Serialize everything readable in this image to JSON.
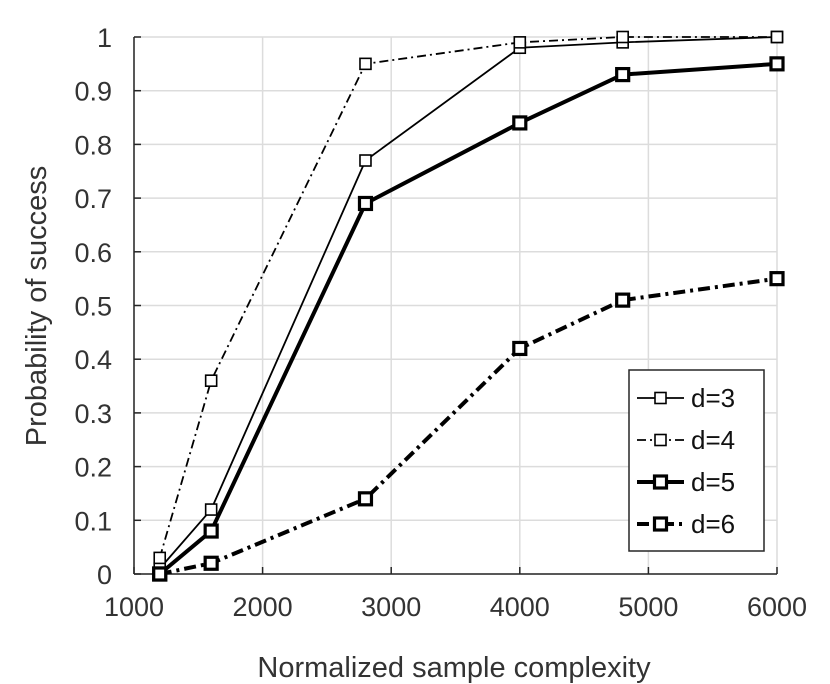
{
  "chart_data": {
    "type": "line",
    "title": "",
    "xlabel": "Normalized sample complexity",
    "ylabel": "Probability of success",
    "xlim": [
      1000,
      6000
    ],
    "ylim": [
      0,
      1
    ],
    "xticks": [
      "1000",
      "2000",
      "3000",
      "4000",
      "5000",
      "6000"
    ],
    "yticks": [
      "0",
      "0.1",
      "0.2",
      "0.3",
      "0.4",
      "0.5",
      "0.6",
      "0.7",
      "0.8",
      "0.9",
      "1"
    ],
    "grid": true,
    "legend_position": "bottom-right",
    "x": [
      1200,
      1600,
      2800,
      4000,
      4800,
      6000
    ],
    "series": [
      {
        "name": "d=3",
        "values": [
          0.01,
          0.12,
          0.77,
          0.98,
          0.99,
          1.0
        ],
        "color": "#000000",
        "style": "solid",
        "weight": "thin",
        "marker": "square"
      },
      {
        "name": "d=4",
        "values": [
          0.03,
          0.36,
          0.95,
          0.99,
          1.0,
          1.0
        ],
        "color": "#000000",
        "style": "dashdot",
        "weight": "thin",
        "marker": "square"
      },
      {
        "name": "d=5",
        "values": [
          0.0,
          0.08,
          0.69,
          0.84,
          0.93,
          0.95
        ],
        "color": "#000000",
        "style": "solid",
        "weight": "thick",
        "marker": "square"
      },
      {
        "name": "d=6",
        "values": [
          0.0,
          0.02,
          0.14,
          0.42,
          0.51,
          0.55
        ],
        "color": "#000000",
        "style": "dashdot",
        "weight": "thick",
        "marker": "square"
      }
    ]
  }
}
